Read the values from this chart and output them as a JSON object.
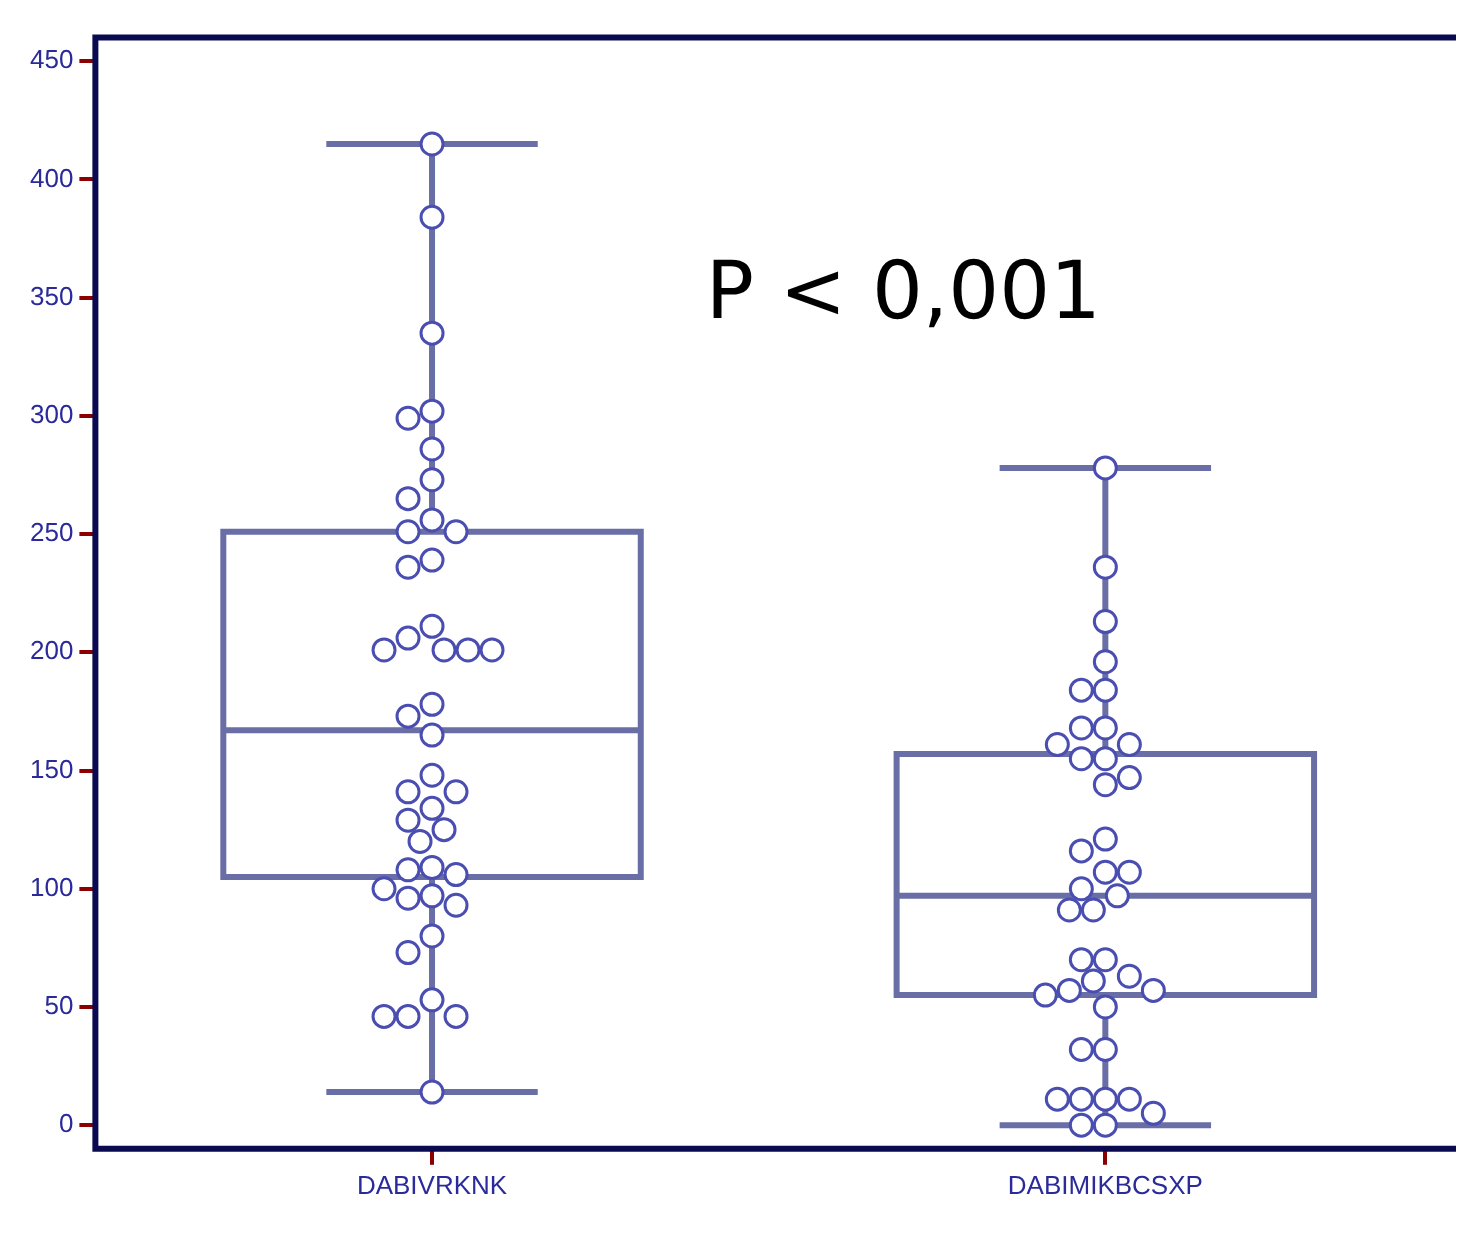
{
  "chart_data": {
    "type": "box",
    "categories": [
      "DABIVRKNK",
      "DABIMIKBCSXP"
    ],
    "ylim": [
      -10,
      460
    ],
    "yticks": [
      0,
      50,
      100,
      150,
      200,
      250,
      300,
      350,
      400,
      450
    ],
    "grid": false,
    "legend": false,
    "annotations": [
      "P < 0,001"
    ],
    "series": [
      {
        "color": "#6a6ea6",
        "boxes": [
          {
            "low": 14,
            "q1": 105,
            "median": 167,
            "q3": 251,
            "high": 415
          },
          {
            "low": 0,
            "q1": 55,
            "median": 97,
            "q3": 157,
            "high": 278
          }
        ]
      },
      {
        "type": "scatter",
        "color": "#4a4eb0",
        "marker": "circle",
        "x": [
          "DABIVRKNK",
          "DABIVRKNK",
          "DABIVRKNK",
          "DABIVRKNK",
          "DABIVRKNK",
          "DABIVRKNK",
          "DABIVRKNK",
          "DABIVRKNK",
          "DABIVRKNK",
          "DABIVRKNK",
          "DABIVRKNK",
          "DABIVRKNK",
          "DABIVRKNK",
          "DABIVRKNK",
          "DABIVRKNK",
          "DABIVRKNK",
          "DABIVRKNK",
          "DABIVRKNK",
          "DABIVRKNK",
          "DABIVRKNK",
          "DABIVRKNK",
          "DABIVRKNK",
          "DABIVRKNK",
          "DABIVRKNK",
          "DABIVRKNK",
          "DABIVRKNK",
          "DABIVRKNK",
          "DABIVRKNK",
          "DABIVRKNK",
          "DABIVRKNK",
          "DABIVRKNK",
          "DABIVRKNK",
          "DABIVRKNK",
          "DABIVRKNK",
          "DABIVRKNK",
          "DABIVRKNK",
          "DABIVRKNK",
          "DABIVRKNK",
          "DABIVRKNK",
          "DABIVRKNK",
          "DABIVRKNK",
          "DABIVRKNK",
          "DABIVRKNK",
          "DABIMIKBCSXP",
          "DABIMIKBCSXP",
          "DABIMIKBCSXP",
          "DABIMIKBCSXP",
          "DABIMIKBCSXP",
          "DABIMIKBCSXP",
          "DABIMIKBCSXP",
          "DABIMIKBCSXP",
          "DABIMIKBCSXP",
          "DABIMIKBCSXP",
          "DABIMIKBCSXP",
          "DABIMIKBCSXP",
          "DABIMIKBCSXP",
          "DABIMIKBCSXP",
          "DABIMIKBCSXP",
          "DABIMIKBCSXP",
          "DABIMIKBCSXP",
          "DABIMIKBCSXP",
          "DABIMIKBCSXP",
          "DABIMIKBCSXP",
          "DABIMIKBCSXP",
          "DABIMIKBCSXP",
          "DABIMIKBCSXP",
          "DABIMIKBCSXP",
          "DABIMIKBCSXP",
          "DABIMIKBCSXP",
          "DABIMIKBCSXP",
          "DABIMIKBCSXP",
          "DABIMIKBCSXP",
          "DABIMIKBCSXP",
          "DABIMIKBCSXP",
          "DABIMIKBCSXP",
          "DABIMIKBCSXP",
          "DABIMIKBCSXP",
          "DABIMIKBCSXP",
          "DABIMIKBCSXP",
          "DABIMIKBCSXP",
          "DABIMIKBCSXP",
          "DABIMIKBCSXP"
        ],
        "values": [
          415,
          384,
          335,
          302,
          299,
          286,
          273,
          265,
          256,
          251,
          251,
          239,
          236,
          211,
          206,
          201,
          201,
          201,
          201,
          178,
          173,
          165,
          148,
          141,
          141,
          134,
          129,
          125,
          120,
          109,
          108,
          106,
          100,
          97,
          96,
          93,
          80,
          73,
          53,
          46,
          46,
          46,
          14,
          278,
          236,
          213,
          196,
          184,
          184,
          168,
          168,
          161,
          161,
          155,
          155,
          147,
          144,
          121,
          116,
          107,
          107,
          100,
          97,
          91,
          91,
          70,
          70,
          63,
          61,
          57,
          57,
          55,
          50,
          32,
          32,
          11,
          11,
          11,
          11,
          5,
          0,
          0
        ]
      }
    ]
  }
}
